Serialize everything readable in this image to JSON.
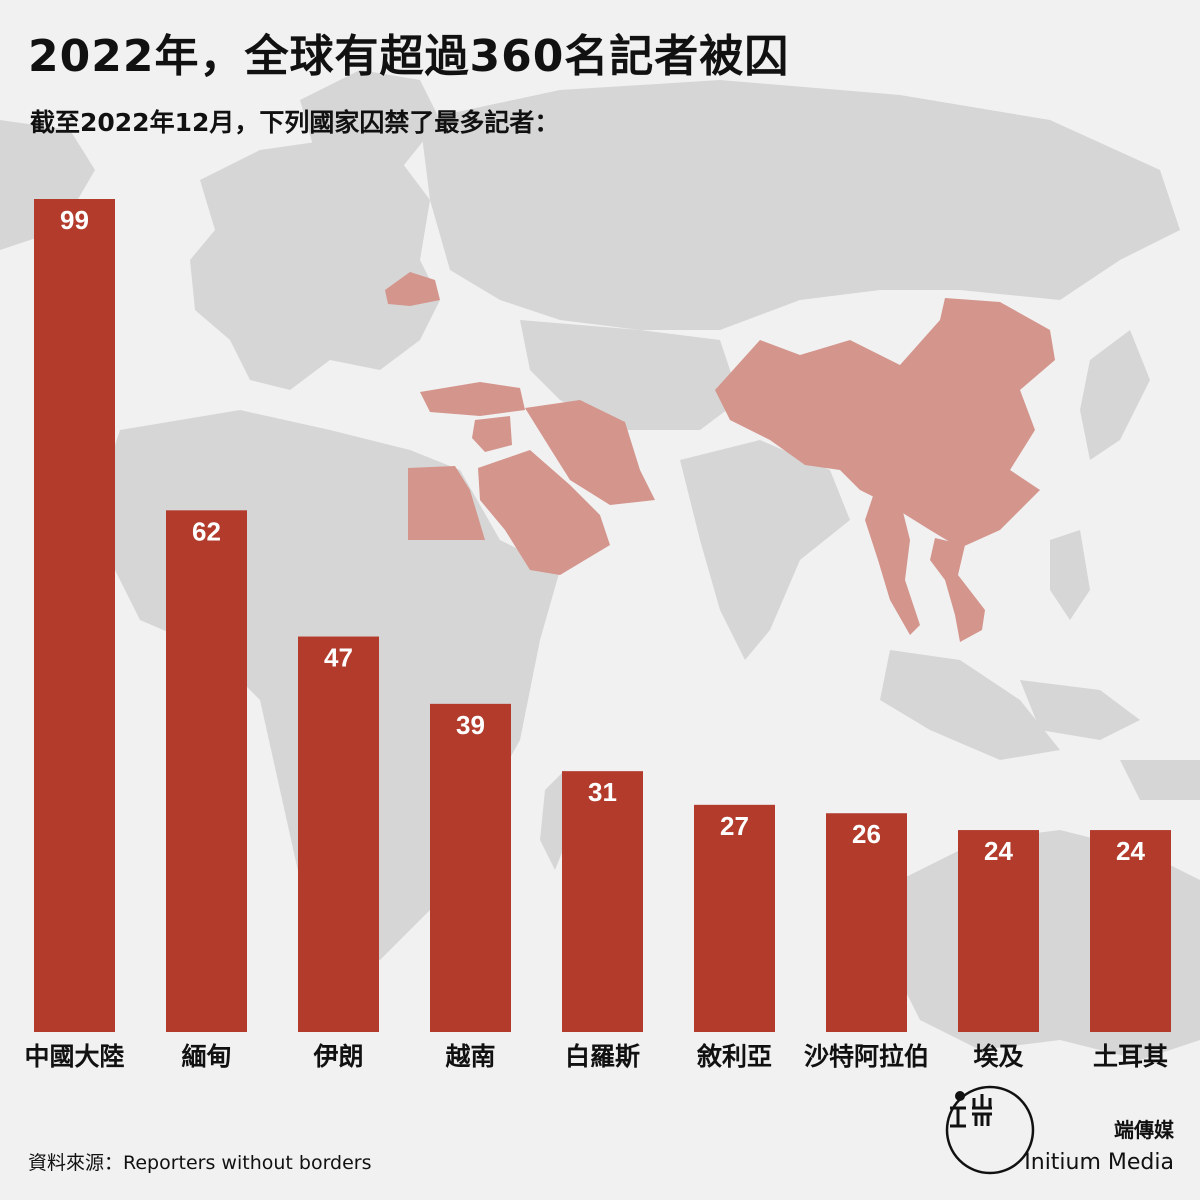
{
  "title": "2022年，全球有超過360名記者被囚",
  "subtitle": "截至2022年12月，下列國家囚禁了最多記者：",
  "source": "資料來源：Reporters without borders",
  "brand": {
    "name_cn": "端傳媒",
    "name_en": "Initium Media",
    "logo_glyphs": "端"
  },
  "colors": {
    "bar": "#b23b2c",
    "highlight_country": "#d4958c",
    "map_land": "#d6d6d6",
    "background": "#f1f1f1"
  },
  "chart_data": {
    "type": "bar",
    "title": "截至2022年12月，下列國家囚禁了最多記者：",
    "xlabel": "",
    "ylabel": "",
    "ylim": [
      0,
      99
    ],
    "categories": [
      "中國大陸",
      "緬甸",
      "伊朗",
      "越南",
      "白羅斯",
      "敘利亞",
      "沙特阿拉伯",
      "埃及",
      "土耳其"
    ],
    "values": [
      99,
      62,
      47,
      39,
      31,
      27,
      26,
      24,
      24
    ],
    "data_labels": true,
    "grid": false,
    "legend": "none"
  }
}
